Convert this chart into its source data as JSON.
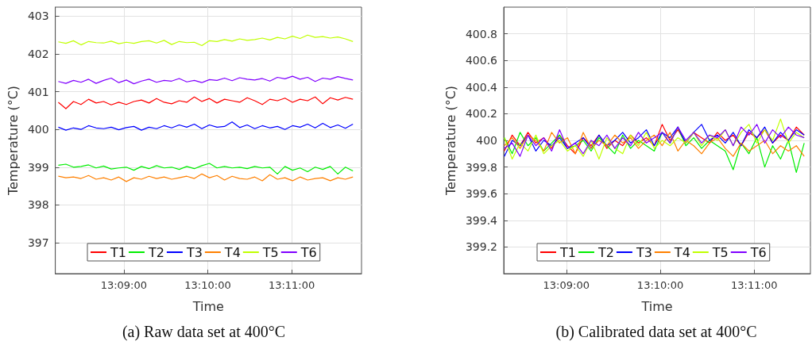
{
  "chart_data": [
    {
      "type": "line",
      "title": "(a) Raw data set at 400°C",
      "xlabel": "Time",
      "ylabel": "Temperature (°C)",
      "grid": true,
      "legend": "bottom",
      "xlim": [
        13.1364,
        13.1972
      ],
      "ylim": [
        396.18,
        403.24
      ],
      "xticks": [
        {
          "value": 13.15,
          "label": "13:09:00"
        },
        {
          "value": 13.16667,
          "label": "13:10:00"
        },
        {
          "value": 13.18333,
          "label": "13:11:00"
        }
      ],
      "yticks": [
        397,
        398,
        399,
        400,
        401,
        402,
        403
      ],
      "x": [
        13.137,
        13.1385,
        13.14,
        13.1415,
        13.143,
        13.1445,
        13.146,
        13.1475,
        13.149,
        13.1505,
        13.152,
        13.1535,
        13.155,
        13.1565,
        13.158,
        13.1595,
        13.161,
        13.1625,
        13.164,
        13.1655,
        13.167,
        13.1685,
        13.17,
        13.1715,
        13.173,
        13.1745,
        13.176,
        13.1775,
        13.179,
        13.1805,
        13.182,
        13.1835,
        13.185,
        13.1865,
        13.188,
        13.1895,
        13.191,
        13.1925,
        13.194,
        13.1955
      ],
      "series": [
        {
          "name": "T1",
          "color": "#ff0000",
          "values": [
            400.72,
            400.55,
            400.74,
            400.66,
            400.8,
            400.7,
            400.74,
            400.65,
            400.72,
            400.66,
            400.74,
            400.78,
            400.7,
            400.82,
            400.72,
            400.68,
            400.76,
            400.72,
            400.86,
            400.74,
            400.82,
            400.7,
            400.8,
            400.76,
            400.72,
            400.84,
            400.76,
            400.66,
            400.8,
            400.76,
            400.83,
            400.72,
            400.8,
            400.76,
            400.86,
            400.68,
            400.84,
            400.78,
            400.85,
            400.8
          ]
        },
        {
          "name": "T2",
          "color": "#00ee00",
          "values": [
            399.05,
            399.08,
            399.0,
            399.02,
            399.06,
            398.98,
            399.03,
            398.95,
            398.98,
            399.0,
            398.92,
            399.02,
            398.96,
            399.04,
            398.98,
            399.0,
            398.94,
            399.02,
            398.96,
            399.04,
            399.1,
            398.98,
            399.02,
            398.98,
            399.0,
            398.96,
            399.02,
            398.98,
            399.0,
            398.82,
            399.02,
            398.92,
            398.98,
            398.88,
            399.0,
            398.94,
            399.02,
            398.82,
            399.0,
            398.9
          ]
        },
        {
          "name": "T3",
          "color": "#0000ff",
          "values": [
            400.06,
            399.98,
            400.04,
            400.0,
            400.1,
            400.04,
            400.02,
            400.06,
            399.99,
            400.05,
            400.08,
            399.98,
            400.06,
            400.02,
            400.1,
            400.04,
            400.12,
            400.06,
            400.14,
            400.02,
            400.12,
            400.06,
            400.08,
            400.2,
            400.05,
            400.12,
            400.02,
            400.1,
            400.04,
            400.08,
            400.0,
            400.1,
            400.06,
            400.14,
            400.04,
            400.16,
            400.05,
            400.12,
            400.03,
            400.14
          ]
        },
        {
          "name": "T4",
          "color": "#ff8000",
          "values": [
            398.76,
            398.72,
            398.74,
            398.7,
            398.78,
            398.68,
            398.72,
            398.66,
            398.74,
            398.62,
            398.72,
            398.68,
            398.76,
            398.7,
            398.74,
            398.68,
            398.72,
            398.76,
            398.7,
            398.82,
            398.72,
            398.78,
            398.66,
            398.76,
            398.7,
            398.68,
            398.74,
            398.64,
            398.8,
            398.68,
            398.72,
            398.64,
            398.74,
            398.66,
            398.7,
            398.72,
            398.64,
            398.72,
            398.68,
            398.74
          ]
        },
        {
          "name": "T5",
          "color": "#c0ff00",
          "values": [
            402.32,
            402.28,
            402.35,
            402.24,
            402.33,
            402.3,
            402.29,
            402.34,
            402.27,
            402.31,
            402.28,
            402.33,
            402.35,
            402.29,
            402.36,
            402.25,
            402.33,
            402.3,
            402.31,
            402.22,
            402.35,
            402.33,
            402.38,
            402.34,
            402.4,
            402.36,
            402.38,
            402.42,
            402.37,
            402.44,
            402.4,
            402.47,
            402.41,
            402.5,
            402.44,
            402.46,
            402.42,
            402.45,
            402.4,
            402.33
          ]
        },
        {
          "name": "T6",
          "color": "#8000ff",
          "values": [
            401.27,
            401.22,
            401.3,
            401.25,
            401.33,
            401.22,
            401.3,
            401.36,
            401.24,
            401.31,
            401.21,
            401.28,
            401.33,
            401.25,
            401.3,
            401.28,
            401.35,
            401.26,
            401.3,
            401.24,
            401.32,
            401.3,
            401.36,
            401.29,
            401.37,
            401.33,
            401.31,
            401.35,
            401.28,
            401.38,
            401.34,
            401.41,
            401.33,
            401.38,
            401.27,
            401.36,
            401.33,
            401.4,
            401.35,
            401.31
          ]
        }
      ]
    },
    {
      "type": "line",
      "title": "(b) Calibrated data set at 400°C",
      "xlabel": "Time",
      "ylabel": "Temperature (°C)",
      "grid": true,
      "legend": "bottom",
      "xlim": [
        13.1389,
        13.1933
      ],
      "ylim": [
        399.0,
        401.0
      ],
      "xticks": [
        {
          "value": 13.15,
          "label": "13:09:00"
        },
        {
          "value": 13.16667,
          "label": "13:10:00"
        },
        {
          "value": 13.18333,
          "label": "13:11:00"
        }
      ],
      "yticks": [
        399.2,
        399.4,
        399.6,
        399.8,
        400,
        400.2,
        400.4,
        400.6,
        400.8
      ],
      "x": [
        13.139,
        13.1404,
        13.1418,
        13.1432,
        13.1446,
        13.146,
        13.1474,
        13.1488,
        13.1502,
        13.1516,
        13.153,
        13.1544,
        13.1558,
        13.1572,
        13.1586,
        13.16,
        13.1614,
        13.1628,
        13.1642,
        13.1656,
        13.167,
        13.1684,
        13.1698,
        13.1712,
        13.1726,
        13.174,
        13.1754,
        13.1768,
        13.1782,
        13.1796,
        13.181,
        13.1824,
        13.1838,
        13.1852,
        13.1866,
        13.188,
        13.1894,
        13.1908,
        13.1922
      ],
      "series": [
        {
          "name": "T1",
          "color": "#ff0000",
          "values": [
            399.92,
            400.04,
            399.96,
            400.06,
            399.98,
            400.02,
            399.94,
            400.04,
            399.96,
            399.9,
            400.02,
            399.96,
            400.04,
            399.94,
            400.0,
            399.96,
            400.04,
            399.98,
            400.02,
            399.96,
            400.12,
            400.0,
            400.08,
            399.98,
            400.06,
            400.02,
            399.98,
            400.06,
            400.0,
            400.04,
            399.96,
            400.06,
            400.02,
            400.08,
            399.98,
            400.04,
            400.0,
            400.1,
            400.04
          ]
        },
        {
          "name": "T2",
          "color": "#00ee00",
          "values": [
            400.02,
            399.9,
            400.06,
            399.96,
            400.02,
            399.92,
            399.98,
            400.04,
            399.94,
            399.96,
            400.0,
            399.92,
            400.02,
            399.96,
            399.9,
            400.04,
            399.94,
            400.0,
            399.96,
            399.92,
            400.06,
            399.98,
            400.1,
            399.96,
            400.02,
            399.94,
            400.0,
            399.96,
            399.92,
            399.78,
            399.98,
            399.9,
            400.02,
            399.8,
            399.96,
            399.86,
            400.0,
            399.76,
            399.98
          ]
        },
        {
          "name": "T3",
          "color": "#0000ff",
          "values": [
            399.88,
            400.0,
            399.96,
            400.04,
            399.92,
            400.0,
            399.96,
            400.02,
            399.94,
            399.98,
            400.02,
            399.94,
            400.04,
            399.96,
            400.0,
            400.06,
            399.98,
            400.02,
            400.08,
            399.96,
            400.06,
            400.02,
            400.1,
            399.98,
            400.06,
            400.12,
            400.0,
            400.04,
            399.98,
            400.06,
            399.96,
            400.08,
            400.02,
            400.1,
            399.98,
            400.06,
            400.0,
            400.08,
            400.04
          ]
        },
        {
          "name": "T4",
          "color": "#ff8000",
          "values": [
            399.96,
            400.02,
            399.94,
            400.04,
            400.0,
            399.92,
            400.06,
            399.98,
            400.02,
            399.9,
            400.06,
            399.94,
            400.0,
            399.96,
            400.04,
            399.98,
            400.02,
            399.94,
            400.0,
            400.04,
            399.96,
            400.06,
            399.92,
            400.0,
            399.96,
            399.9,
            399.98,
            400.02,
            399.94,
            399.88,
            399.98,
            399.92,
            399.96,
            400.0,
            399.9,
            399.96,
            399.92,
            399.96,
            399.88
          ]
        },
        {
          "name": "T5",
          "color": "#c0ff00",
          "values": [
            400.02,
            399.86,
            399.98,
            399.92,
            400.04,
            399.9,
            399.96,
            400.0,
            399.92,
            399.96,
            399.88,
            400.0,
            399.86,
            400.02,
            399.94,
            399.9,
            400.04,
            399.96,
            400.06,
            399.94,
            400.0,
            399.96,
            400.02,
            399.98,
            400.06,
            399.96,
            400.04,
            400.0,
            400.08,
            399.96,
            400.06,
            400.12,
            399.98,
            400.08,
            400.0,
            400.16,
            399.98,
            400.06,
            400.02
          ]
        },
        {
          "name": "T6",
          "color": "#8000ff",
          "values": [
            399.94,
            399.98,
            399.88,
            400.04,
            399.96,
            400.02,
            399.92,
            400.08,
            399.94,
            399.98,
            399.9,
            400.0,
            399.96,
            400.04,
            399.94,
            400.02,
            399.96,
            400.06,
            399.98,
            400.02,
            400.06,
            399.98,
            400.1,
            400.0,
            400.06,
            399.98,
            400.04,
            400.02,
            400.08,
            399.96,
            400.1,
            400.04,
            400.12,
            399.98,
            400.08,
            400.02,
            400.1,
            400.04,
            400.02
          ]
        }
      ]
    }
  ]
}
